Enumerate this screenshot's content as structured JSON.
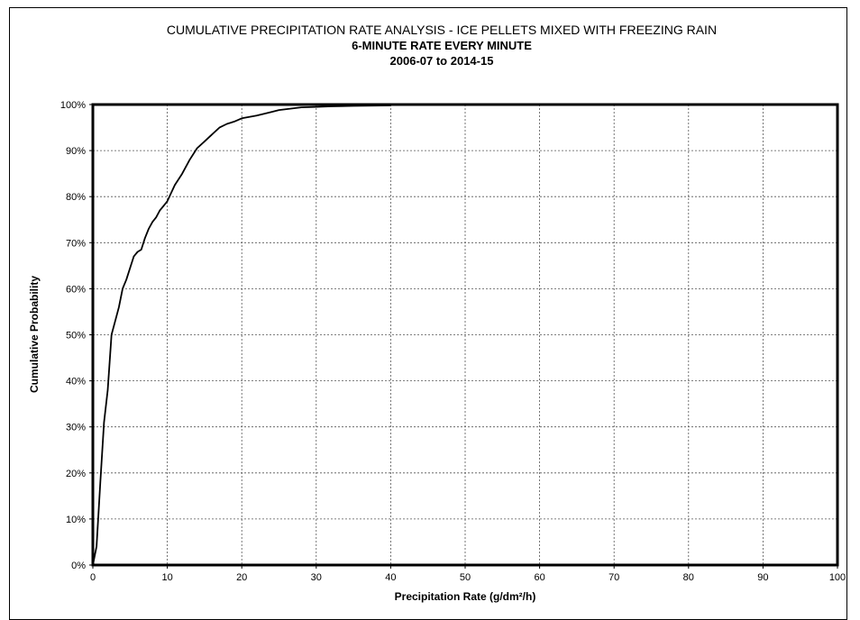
{
  "chart_data": {
    "type": "line",
    "title": "CUMULATIVE PRECIPITATION RATE ANALYSIS - ICE PELLETS MIXED WITH FREEZING RAIN",
    "subtitle": "6-MINUTE RATE EVERY MINUTE",
    "subtitle2": "2006-07 to 2014-15",
    "xlabel": "Precipitation Rate (g/dm²/h)",
    "ylabel": "Cumulative Probability",
    "xlim": [
      0,
      100
    ],
    "ylim": [
      0,
      100
    ],
    "x_ticks": [
      0,
      10,
      20,
      30,
      40,
      50,
      60,
      70,
      80,
      90,
      100
    ],
    "y_ticks": [
      0,
      10,
      20,
      30,
      40,
      50,
      60,
      70,
      80,
      90,
      100
    ],
    "x_tick_labels": [
      "0",
      "10",
      "20",
      "30",
      "40",
      "50",
      "60",
      "70",
      "80",
      "90",
      "100"
    ],
    "y_tick_labels": [
      "0%",
      "10%",
      "20%",
      "30%",
      "40%",
      "50%",
      "60%",
      "70%",
      "80%",
      "90%",
      "100%"
    ],
    "grid": true,
    "series": [
      {
        "name": "",
        "color": "#000000",
        "x": [
          0,
          0.5,
          1,
          1.5,
          2,
          2.5,
          3,
          3.5,
          4,
          4.5,
          5,
          5.5,
          6,
          6.5,
          7,
          7.5,
          8,
          8.5,
          9,
          9.5,
          10,
          11,
          12,
          13,
          14,
          15,
          16,
          17,
          18,
          19,
          20,
          21,
          22,
          23,
          24,
          25,
          26,
          27,
          28,
          30,
          32,
          35,
          40
        ],
        "y": [
          0,
          4,
          18,
          31,
          38,
          50,
          53,
          56,
          60,
          62,
          64.5,
          67,
          68,
          68.5,
          71,
          73,
          74.5,
          75.5,
          77,
          78,
          79,
          82.5,
          85,
          88,
          90.5,
          92,
          93.5,
          95,
          95.8,
          96.3,
          97,
          97.3,
          97.6,
          98,
          98.4,
          98.8,
          99,
          99.2,
          99.4,
          99.5,
          99.6,
          99.7,
          99.8
        ]
      }
    ]
  }
}
